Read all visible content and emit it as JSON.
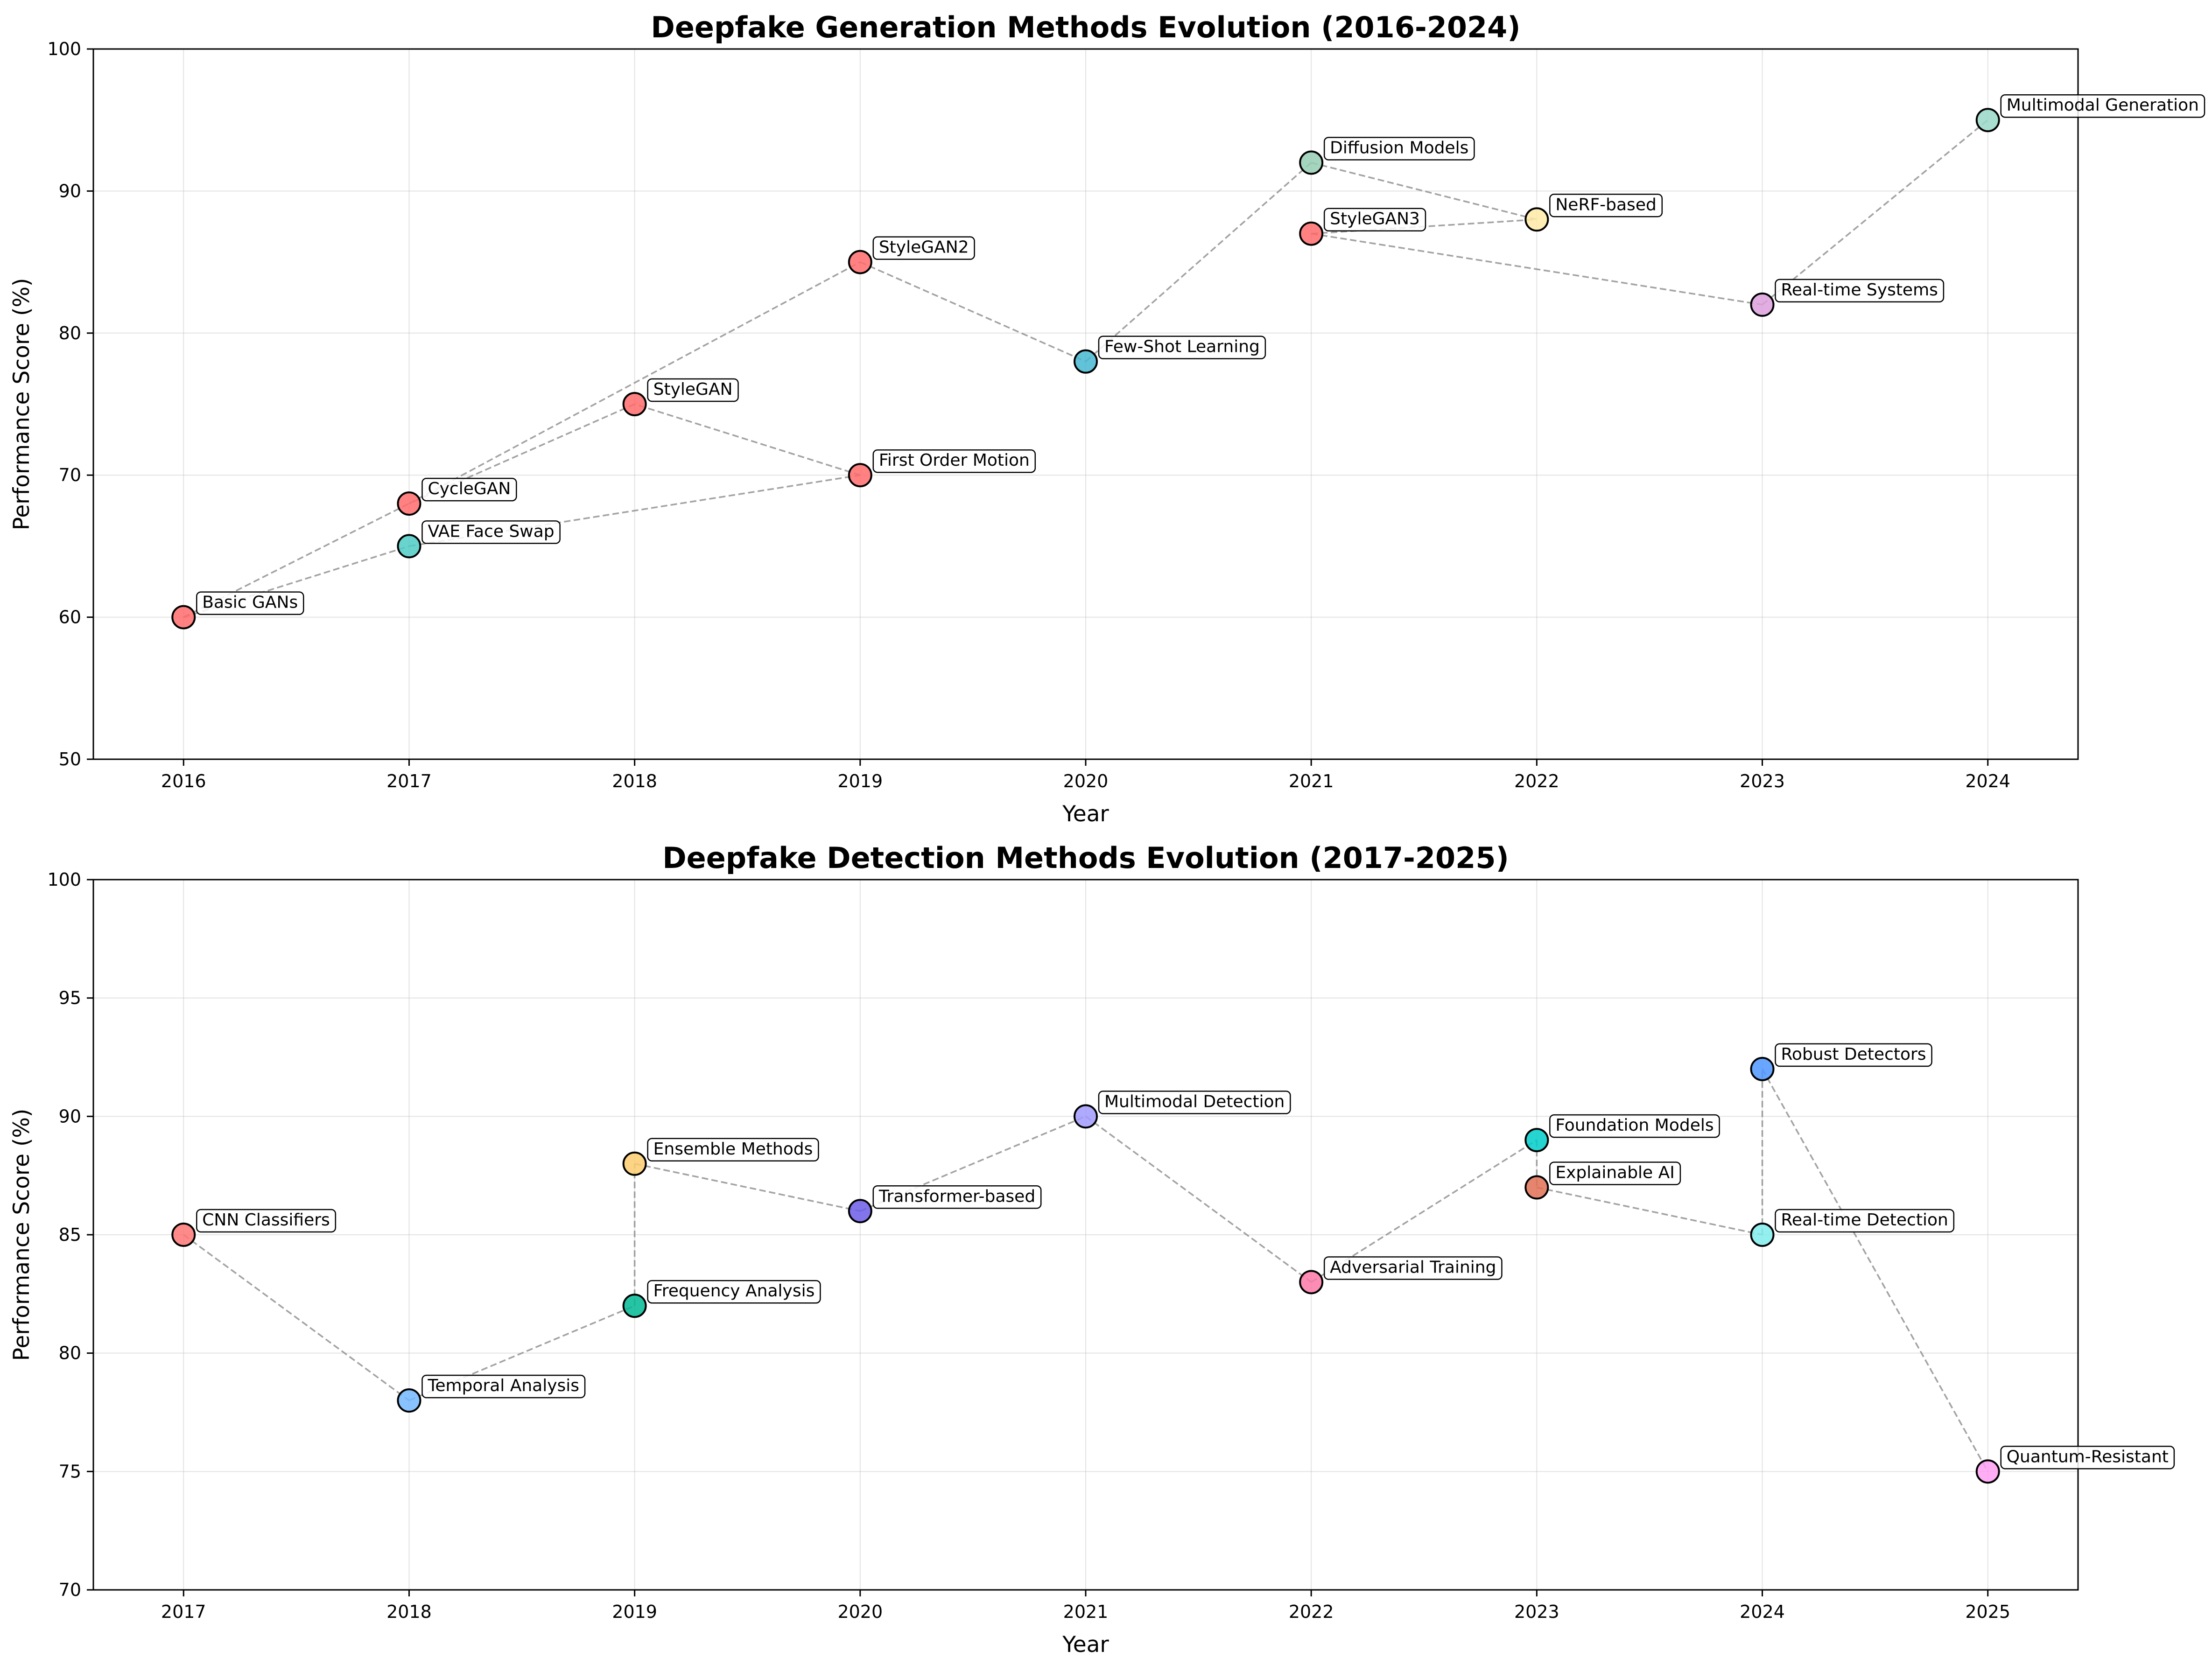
{
  "chart_data": [
    {
      "type": "scatter",
      "title": "Deepfake Generation Methods Evolution (2016-2024)",
      "xlabel": "Year",
      "ylabel": "Performance Score (%)",
      "xlim": [
        2015.6,
        2024.4
      ],
      "ylim": [
        50,
        100
      ],
      "xticks": [
        "2016",
        "2017",
        "2018",
        "2019",
        "2020",
        "2021",
        "2022",
        "2023",
        "2024"
      ],
      "yticks": [
        "50",
        "60",
        "70",
        "80",
        "90",
        "100"
      ],
      "grid": true,
      "connector_style": "dashed gray",
      "points": [
        {
          "label": "Basic GANs",
          "x": 2016,
          "y": 60,
          "color": "#ff6b6b"
        },
        {
          "label": "VAE Face Swap",
          "x": 2017,
          "y": 65,
          "color": "#4ecdc4"
        },
        {
          "label": "CycleGAN",
          "x": 2017,
          "y": 68,
          "color": "#ff6b6b"
        },
        {
          "label": "StyleGAN",
          "x": 2018,
          "y": 75,
          "color": "#ff6b6b"
        },
        {
          "label": "StyleGAN2",
          "x": 2019,
          "y": 85,
          "color": "#ff6b6b"
        },
        {
          "label": "First Order Motion",
          "x": 2019,
          "y": 70,
          "color": "#ff6b6b"
        },
        {
          "label": "Few-Shot Learning",
          "x": 2020,
          "y": 78,
          "color": "#45b7d1"
        },
        {
          "label": "StyleGAN3",
          "x": 2021,
          "y": 87,
          "color": "#ff6b6b"
        },
        {
          "label": "Diffusion Models",
          "x": 2021,
          "y": 92,
          "color": "#96ceb4"
        },
        {
          "label": "NeRF-based",
          "x": 2022,
          "y": 88,
          "color": "#ffeaa7"
        },
        {
          "label": "Real-time Systems",
          "x": 2023,
          "y": 82,
          "color": "#dda0dd"
        },
        {
          "label": "Multimodal Generation",
          "x": 2024,
          "y": 95,
          "color": "#98d8c8"
        }
      ],
      "connections": [
        [
          0,
          2
        ],
        [
          2,
          4
        ],
        [
          4,
          6
        ],
        [
          6,
          8
        ],
        [
          8,
          9
        ],
        [
          0,
          1
        ],
        [
          1,
          5
        ],
        [
          5,
          3
        ],
        [
          3,
          2
        ],
        [
          7,
          10
        ],
        [
          10,
          11
        ],
        [
          7,
          9
        ]
      ]
    },
    {
      "type": "scatter",
      "title": "Deepfake Detection Methods Evolution (2017-2025)",
      "xlabel": "Year",
      "ylabel": "Performance Score (%)",
      "xlim": [
        2016.6,
        2025.4
      ],
      "ylim": [
        70,
        100
      ],
      "xticks": [
        "2017",
        "2018",
        "2019",
        "2020",
        "2021",
        "2022",
        "2023",
        "2024",
        "2025"
      ],
      "yticks": [
        "70",
        "75",
        "80",
        "85",
        "90",
        "95",
        "100"
      ],
      "grid": true,
      "connector_style": "dashed gray",
      "points": [
        {
          "label": "CNN Classifiers",
          "x": 2017,
          "y": 85,
          "color": "#ff7675"
        },
        {
          "label": "Temporal Analysis",
          "x": 2018,
          "y": 78,
          "color": "#74b9ff"
        },
        {
          "label": "Frequency Analysis",
          "x": 2019,
          "y": 82,
          "color": "#00b894"
        },
        {
          "label": "Ensemble Methods",
          "x": 2019,
          "y": 88,
          "color": "#fdcb6e"
        },
        {
          "label": "Transformer-based",
          "x": 2020,
          "y": 86,
          "color": "#6c5ce7"
        },
        {
          "label": "Multimodal Detection",
          "x": 2021,
          "y": 90,
          "color": "#a29bfe"
        },
        {
          "label": "Adversarial Training",
          "x": 2022,
          "y": 83,
          "color": "#fd79a8"
        },
        {
          "label": "Foundation Models",
          "x": 2023,
          "y": 89,
          "color": "#00cec9"
        },
        {
          "label": "Explainable AI",
          "x": 2023,
          "y": 87,
          "color": "#e17055"
        },
        {
          "label": "Robust Detectors",
          "x": 2024,
          "y": 92,
          "color": "#4d96ff"
        },
        {
          "label": "Real-time Detection",
          "x": 2024,
          "y": 85,
          "color": "#81ecec"
        },
        {
          "label": "Quantum-Resistant",
          "x": 2025,
          "y": 75,
          "color": "#ff9ff3"
        }
      ],
      "connections": [
        [
          0,
          1
        ],
        [
          1,
          2
        ],
        [
          2,
          3
        ],
        [
          3,
          4
        ],
        [
          4,
          5
        ],
        [
          5,
          6
        ],
        [
          6,
          7
        ],
        [
          7,
          8
        ],
        [
          8,
          10
        ],
        [
          10,
          9
        ],
        [
          9,
          11
        ]
      ]
    }
  ]
}
